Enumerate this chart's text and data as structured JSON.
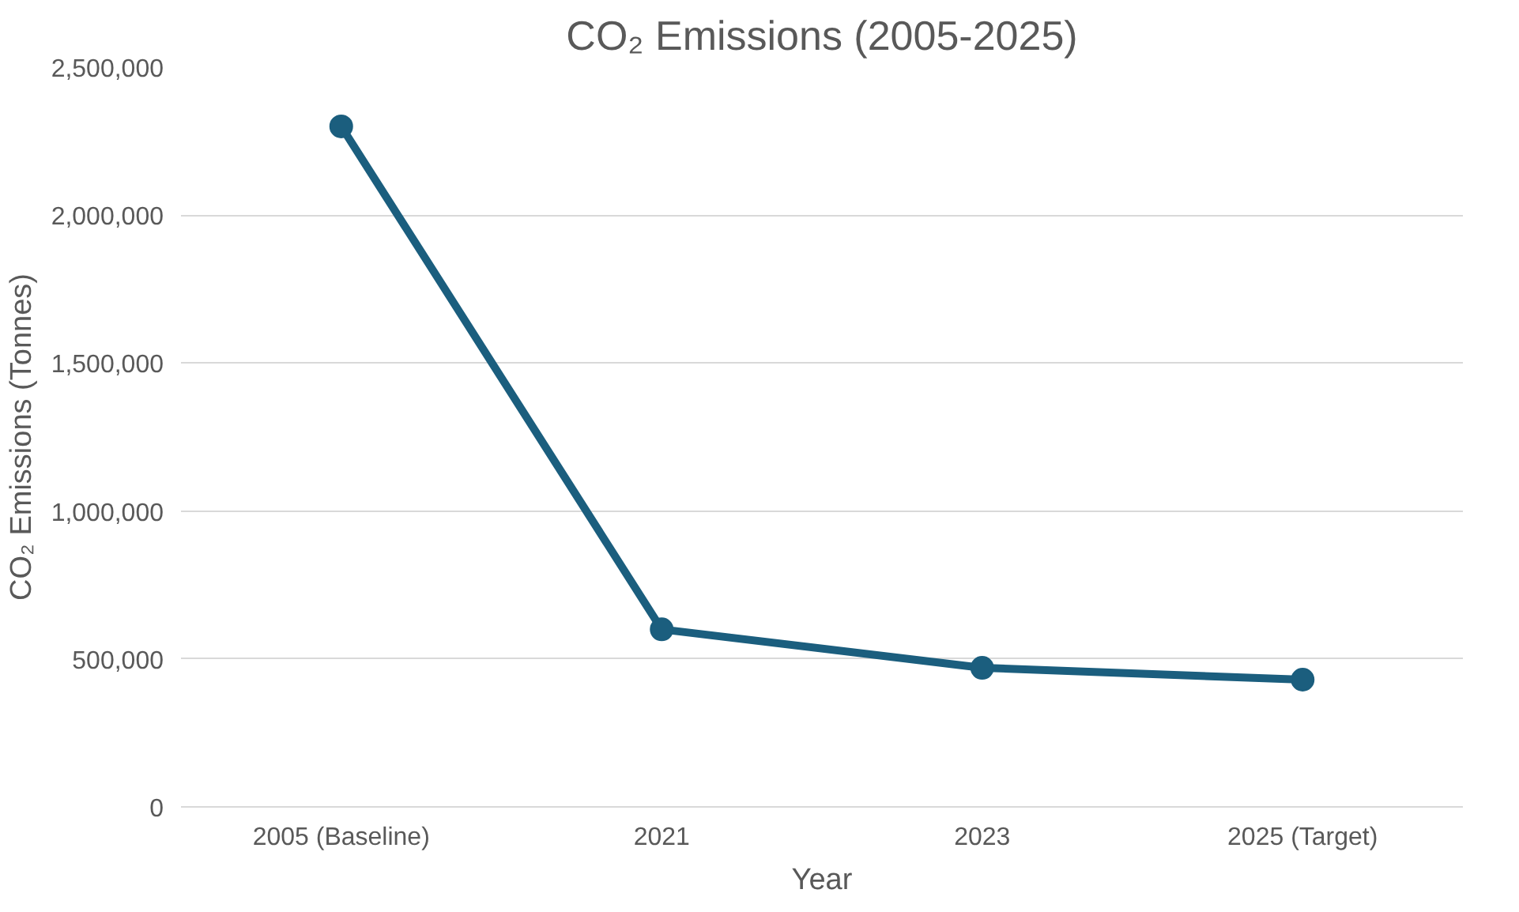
{
  "chart_data": {
    "type": "line",
    "title": "CO₂ Emissions (2005-2025)",
    "xlabel": "Year",
    "ylabel": "CO₂ Emissions (Tonnes)",
    "categories": [
      "2005 (Baseline)",
      "2021",
      "2023",
      "2025 (Target)"
    ],
    "series": [
      {
        "color": "#1b5e7e",
        "values": [
          2300000,
          600000,
          470000,
          430000
        ]
      }
    ],
    "ylim": [
      0,
      2500000
    ],
    "yticks": [
      {
        "value": 0,
        "label": "0"
      },
      {
        "value": 500000,
        "label": "500,000"
      },
      {
        "value": 1000000,
        "label": "1,000,000"
      },
      {
        "value": 1500000,
        "label": "1,500,000"
      },
      {
        "value": 2000000,
        "label": "2,000,000"
      },
      {
        "value": 2500000,
        "label": "2,500,000"
      }
    ],
    "grid": "y",
    "marker": "circle",
    "line_style": "solid"
  }
}
